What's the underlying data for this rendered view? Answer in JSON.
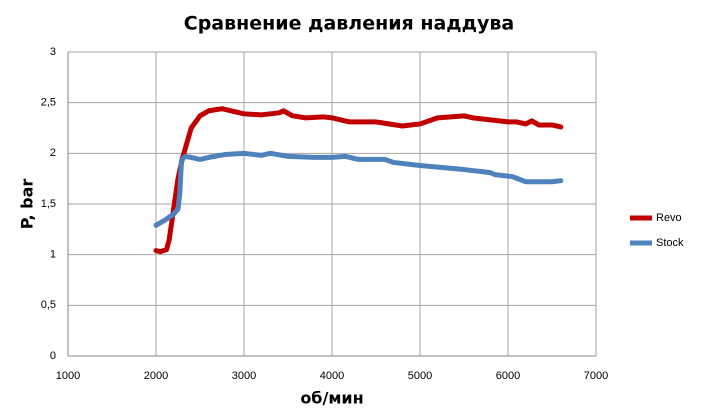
{
  "chart_data": {
    "type": "line",
    "title": "Сравнение давления наддува",
    "xlabel": "об/мин",
    "ylabel": "P, bar",
    "xlim": [
      1000,
      7000
    ],
    "xticks": [
      1000,
      2000,
      3000,
      4000,
      5000,
      6000,
      7000
    ],
    "ylim": [
      0,
      3
    ],
    "yticks": [
      0,
      {
        "value": 0.5,
        "label": "0,5"
      },
      1,
      {
        "value": 1.5,
        "label": "1,5"
      },
      2,
      {
        "value": 2.5,
        "label": "2,5"
      },
      3
    ],
    "grid": true,
    "legend": "right",
    "series": [
      {
        "name": "Revo",
        "color": "#c00000",
        "x": [
          2000,
          2050,
          2120,
          2150,
          2200,
          2250,
          2300,
          2350,
          2400,
          2500,
          2600,
          2750,
          2900,
          3000,
          3200,
          3400,
          3450,
          3550,
          3700,
          3900,
          4000,
          4200,
          4500,
          4800,
          5000,
          5200,
          5500,
          5600,
          5800,
          6000,
          6100,
          6200,
          6270,
          6350,
          6500,
          6600
        ],
        "values": [
          1.04,
          1.03,
          1.05,
          1.15,
          1.45,
          1.75,
          1.95,
          2.1,
          2.25,
          2.37,
          2.42,
          2.44,
          2.41,
          2.39,
          2.38,
          2.4,
          2.42,
          2.37,
          2.35,
          2.36,
          2.35,
          2.31,
          2.31,
          2.27,
          2.29,
          2.35,
          2.37,
          2.35,
          2.33,
          2.31,
          2.31,
          2.29,
          2.32,
          2.28,
          2.28,
          2.26
        ]
      },
      {
        "name": "Stock",
        "color": "#4f81bd",
        "x": [
          2000,
          2100,
          2200,
          2250,
          2270,
          2290,
          2330,
          2400,
          2500,
          2600,
          2800,
          3000,
          3200,
          3300,
          3500,
          3800,
          4000,
          4150,
          4300,
          4600,
          4700,
          5000,
          5500,
          5800,
          5850,
          5950,
          6050,
          6200,
          6300,
          6500,
          6600
        ],
        "values": [
          1.29,
          1.34,
          1.4,
          1.45,
          1.6,
          1.93,
          1.97,
          1.96,
          1.94,
          1.96,
          1.99,
          2.0,
          1.98,
          2.0,
          1.97,
          1.96,
          1.96,
          1.97,
          1.94,
          1.94,
          1.91,
          1.88,
          1.84,
          1.81,
          1.79,
          1.78,
          1.77,
          1.72,
          1.72,
          1.72,
          1.73
        ]
      }
    ]
  }
}
